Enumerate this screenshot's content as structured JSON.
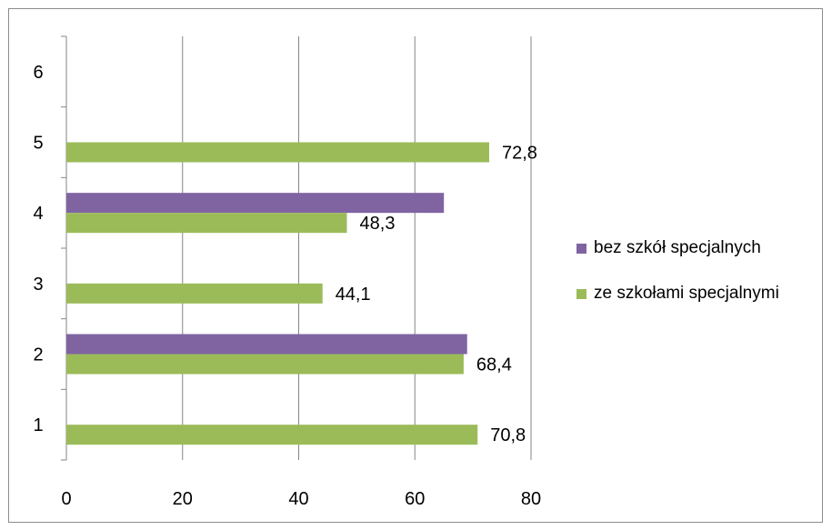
{
  "chart_data": {
    "type": "bar",
    "orientation": "horizontal",
    "categories": [
      "1",
      "2",
      "3",
      "4",
      "5",
      "6"
    ],
    "xlim": [
      0,
      80
    ],
    "x_ticks": [
      0,
      20,
      40,
      60,
      80
    ],
    "grid": "vertical",
    "legend_position": "right",
    "series": [
      {
        "name": "bez szkół specjalnych",
        "color": "#8064a2",
        "values": [
          null,
          69,
          null,
          65,
          null,
          null
        ],
        "labels": [
          null,
          null,
          null,
          null,
          null,
          null
        ]
      },
      {
        "name": "ze szkołami specjalnymi",
        "color": "#9bbb59",
        "values": [
          70.8,
          68.4,
          44.1,
          48.3,
          72.8,
          null
        ],
        "labels": [
          "70,8",
          "68,4",
          "44,1",
          "48,3",
          "72,8",
          null
        ]
      }
    ]
  }
}
